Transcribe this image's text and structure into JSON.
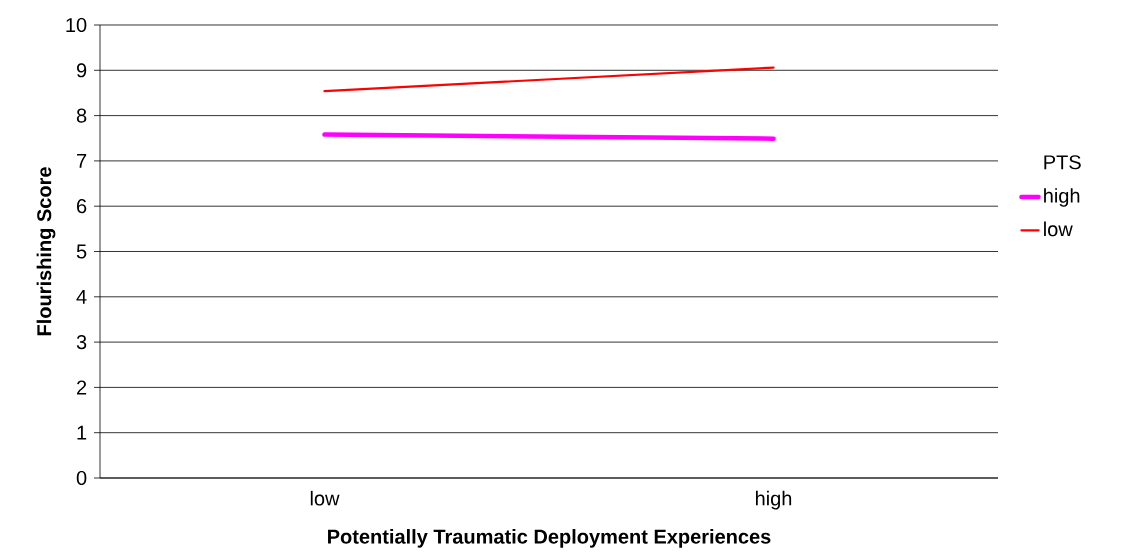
{
  "chart_data": {
    "type": "line",
    "xlabel": "Potentially Traumatic Deployment Experiences",
    "ylabel": "Flourishing Score",
    "legend_title": "PTS",
    "categories": [
      "low",
      "high"
    ],
    "series": [
      {
        "name": "high",
        "color": "#ff00ff",
        "values": [
          7.58,
          7.49
        ]
      },
      {
        "name": "low",
        "color": "#ff0000",
        "values": [
          8.54,
          9.06
        ]
      }
    ],
    "ylim": [
      0,
      10
    ],
    "yticks": [
      0,
      1,
      2,
      3,
      4,
      5,
      6,
      7,
      8,
      9,
      10
    ],
    "grid": "y",
    "legend": "right",
    "marker": "none",
    "line_style": "solid"
  }
}
